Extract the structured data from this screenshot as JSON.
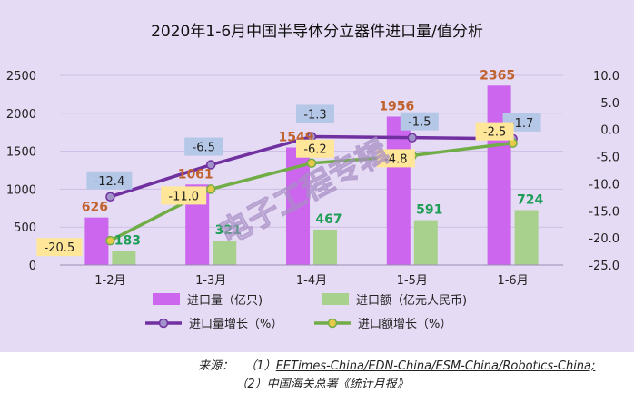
{
  "chart_data": {
    "type": "bar+line",
    "title": "2020年1-6月中国半导体分立器件进口量/值分析",
    "categories": [
      "1-2月",
      "1-3月",
      "1-4月",
      "1-5月",
      "1-6月"
    ],
    "left_axis": {
      "min": 0,
      "max": 2500,
      "step": 500,
      "ticks": [
        "0",
        "500",
        "1000",
        "1500",
        "2000",
        "2500"
      ]
    },
    "right_axis": {
      "min": -25,
      "max": 10,
      "step": 5,
      "ticks": [
        "-25.0",
        "-20.0",
        "-15.0",
        "-10.0",
        "-5.0",
        "0.0",
        "5.0",
        "10.0"
      ]
    },
    "series": [
      {
        "name": "进口量（亿只)",
        "kind": "bar",
        "axis": "left",
        "color": "#cc66ee",
        "values": [
          626,
          1061,
          1549,
          1956,
          2365
        ],
        "labels": [
          "626",
          "1061",
          "1549",
          "1956",
          "2365"
        ],
        "label_color": "#c0622e"
      },
      {
        "name": "进口额（亿元人民币)",
        "kind": "bar",
        "axis": "left",
        "color": "#a9d18e",
        "values": [
          183,
          321,
          467,
          591,
          724
        ],
        "labels": [
          "183",
          "321",
          "467",
          "591",
          "724"
        ],
        "label_color": "#1f9e57"
      },
      {
        "name": "进口量增长（%）",
        "kind": "line",
        "axis": "right",
        "color": "#7030a0",
        "values": [
          -12.4,
          -6.5,
          -1.3,
          -1.5,
          -1.7
        ],
        "labels": [
          "-12.4",
          "-6.5",
          "-1.3",
          "-1.5",
          "-1.7"
        ],
        "label_bg": "#b4c7e7"
      },
      {
        "name": "进口额增长（%）",
        "kind": "line",
        "axis": "right",
        "color": "#70ad47",
        "values": [
          -20.5,
          -11.0,
          -6.2,
          -4.8,
          -2.5
        ],
        "labels": [
          "-20.5",
          "-11.0",
          "-6.2",
          "-4.8",
          "-2.5"
        ],
        "label_bg": "#ffe699"
      }
    ],
    "legend_placement": "bottom",
    "watermark": "电子工程专辑"
  },
  "source": {
    "prefix": "来源：",
    "line1_num": "（1）",
    "line1_text": "EETimes-China/EDN-China/ESM-China/Robotics-China;",
    "line2_num": "（2）",
    "line2_text": "中国海关总署《统计月报》"
  }
}
